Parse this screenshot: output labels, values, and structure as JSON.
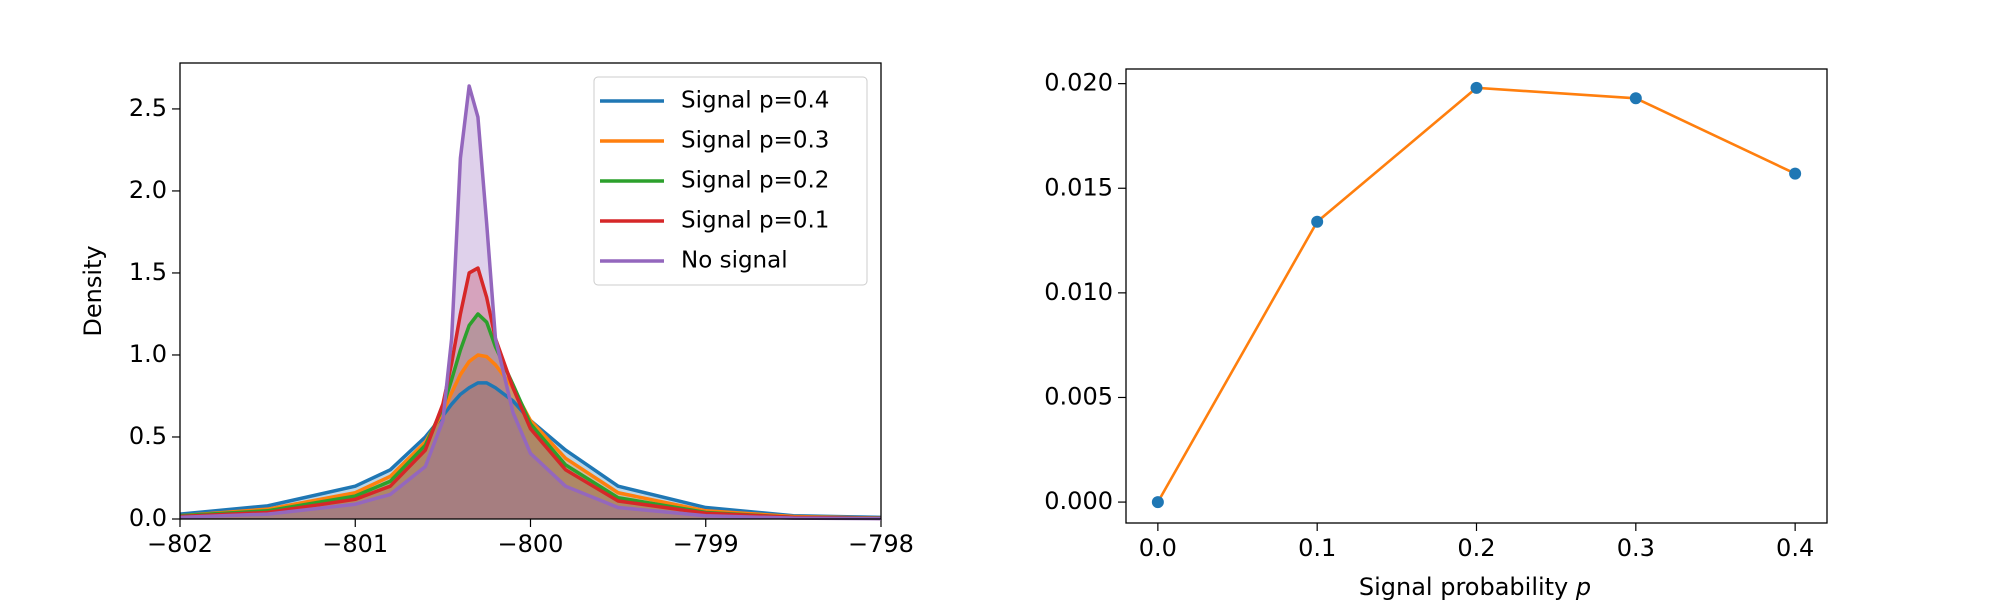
{
  "chart_data": [
    {
      "type": "area",
      "ylabel": "Density",
      "legend": "upper right",
      "fill_alpha": 0.3,
      "x": [
        -802,
        -801.5,
        -801,
        -800.8,
        -800.6,
        -800.5,
        -800.45,
        -800.4,
        -800.35,
        -800.3,
        -800.25,
        -800.2,
        -800.1,
        -800,
        -799.8,
        -799.5,
        -799,
        -798.5,
        -798
      ],
      "series": [
        {
          "name": "Signal p=0.4",
          "color": "#1f77b4",
          "values": [
            0.03,
            0.08,
            0.2,
            0.3,
            0.5,
            0.63,
            0.7,
            0.76,
            0.8,
            0.83,
            0.83,
            0.8,
            0.72,
            0.6,
            0.42,
            0.2,
            0.07,
            0.02,
            0.01
          ]
        },
        {
          "name": "Signal p=0.3",
          "color": "#ff7f0e",
          "values": [
            0.02,
            0.06,
            0.16,
            0.26,
            0.47,
            0.65,
            0.77,
            0.88,
            0.96,
            1.0,
            0.99,
            0.94,
            0.8,
            0.6,
            0.37,
            0.16,
            0.05,
            0.015,
            0.005
          ]
        },
        {
          "name": "Signal p=0.2",
          "color": "#2ca02c",
          "values": [
            0.02,
            0.05,
            0.14,
            0.23,
            0.45,
            0.68,
            0.85,
            1.03,
            1.18,
            1.25,
            1.2,
            1.05,
            0.82,
            0.58,
            0.33,
            0.13,
            0.04,
            0.01,
            0.005
          ]
        },
        {
          "name": "Signal p=0.1",
          "color": "#d62728",
          "values": [
            0.015,
            0.04,
            0.12,
            0.2,
            0.42,
            0.7,
            0.95,
            1.25,
            1.5,
            1.53,
            1.35,
            1.1,
            0.8,
            0.55,
            0.3,
            0.11,
            0.035,
            0.01,
            0.004
          ]
        },
        {
          "name": "No signal",
          "color": "#9467bd",
          "values": [
            0.01,
            0.03,
            0.09,
            0.15,
            0.32,
            0.6,
            1.1,
            2.2,
            2.64,
            2.45,
            1.8,
            1.1,
            0.65,
            0.4,
            0.2,
            0.07,
            0.02,
            0.005,
            0.002
          ]
        }
      ],
      "xlim": [
        -802,
        -798
      ],
      "ylim": [
        0,
        2.78
      ],
      "xticks": [
        {
          "value": -802,
          "label": "−802"
        },
        {
          "value": -801,
          "label": "−801"
        },
        {
          "value": -800,
          "label": "−800"
        },
        {
          "value": -799,
          "label": "−799"
        },
        {
          "value": -798,
          "label": "−798"
        }
      ],
      "yticks": [
        {
          "value": 0,
          "label": "0.0"
        },
        0.5,
        {
          "value": 1,
          "label": "1.0"
        },
        1.5,
        {
          "value": 2,
          "label": "2.0"
        },
        2.5
      ]
    },
    {
      "type": "line",
      "xlabel": "Signal probability",
      "xlabel_var": "p",
      "color": "#ff7f0e",
      "marker_color": "#1f77b4",
      "x": [
        0,
        0.1,
        0.2,
        0.3,
        0.4
      ],
      "values": [
        0,
        0.0134,
        0.0198,
        0.0193,
        0.0157
      ],
      "xlim": [
        -0.02,
        0.42
      ],
      "ylim": [
        -0.001,
        0.0207
      ],
      "xticks": [
        {
          "value": 0,
          "label": "0.0"
        },
        0.1,
        0.2,
        0.3,
        0.4
      ],
      "yticks": [
        {
          "value": 0,
          "label": "0.000"
        },
        {
          "value": 0.005,
          "label": "0.005"
        },
        {
          "value": 0.01,
          "label": "0.010"
        },
        {
          "value": 0.015,
          "label": "0.015"
        },
        {
          "value": 0.02,
          "label": "0.020"
        }
      ]
    }
  ]
}
